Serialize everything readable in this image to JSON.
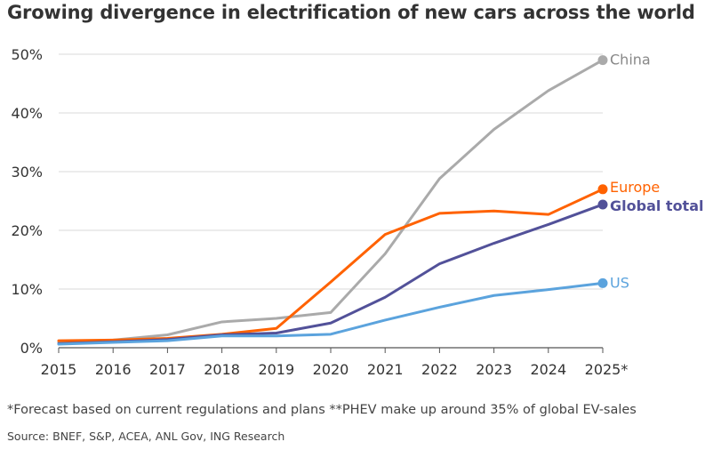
{
  "title": "Growing divergence in electrification of new cars across the world",
  "footnote": "*Forecast based on current regulations and plans **PHEV make up around 35% of global EV-sales",
  "source": "Source: BNEF, S&P, ACEA, ANL Gov, ING Research",
  "chart_data": {
    "type": "line",
    "x": [
      "2015",
      "2016",
      "2017",
      "2018",
      "2019",
      "2020",
      "2021",
      "2022",
      "2023",
      "2024",
      "2025*"
    ],
    "ylim": [
      0,
      50
    ],
    "yticks": [
      0,
      10,
      20,
      30,
      40,
      50
    ],
    "ytick_labels": [
      "0%",
      "10%",
      "20%",
      "30%",
      "40%",
      "50%"
    ],
    "grid": true,
    "series": [
      {
        "name": "China",
        "color": "#aaaaaa",
        "values": [
          1.0,
          1.3,
          2.2,
          4.4,
          5.0,
          6.0,
          16.0,
          28.8,
          37.2,
          43.8,
          49.0
        ]
      },
      {
        "name": "Europe",
        "color": "#ff6200",
        "values": [
          1.2,
          1.3,
          1.6,
          2.3,
          3.3,
          11.2,
          19.3,
          22.9,
          23.3,
          22.7,
          27.0
        ]
      },
      {
        "name": "Global total",
        "color": "#525199",
        "values": [
          0.7,
          1.0,
          1.4,
          2.2,
          2.5,
          4.2,
          8.6,
          14.3,
          17.8,
          21.0,
          24.4
        ]
      },
      {
        "name": "US",
        "color": "#5ba3dd",
        "values": [
          0.6,
          0.9,
          1.2,
          2.0,
          2.0,
          2.3,
          4.7,
          6.9,
          8.9,
          9.9,
          11.0
        ]
      }
    ]
  }
}
